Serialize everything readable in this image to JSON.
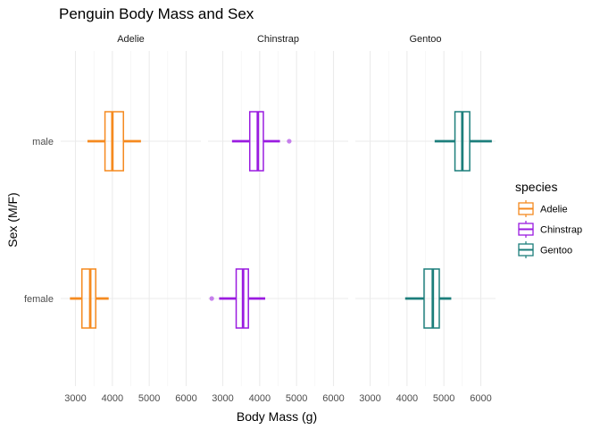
{
  "chart_data": {
    "type": "boxplot",
    "title": "Penguin Body Mass and Sex",
    "xlabel": "Body Mass (g)",
    "ylabel": "Sex (M/F)",
    "xlim": [
      2600,
      6400
    ],
    "x_ticks": [
      3000,
      4000,
      5000,
      6000
    ],
    "x_tick_labels": [
      "3000",
      "4000",
      "5000",
      "6000"
    ],
    "categories": [
      "female",
      "male"
    ],
    "facets": [
      "Adelie",
      "Chinstrap",
      "Gentoo"
    ],
    "legend": {
      "title": "species",
      "position": "right",
      "entries": [
        "Adelie",
        "Chinstrap",
        "Gentoo"
      ]
    },
    "colors": {
      "Adelie": "#F58A1F",
      "Chinstrap": "#9A1BE0",
      "Gentoo": "#1C7E7B"
    },
    "grid": true,
    "series": [
      {
        "name": "Adelie",
        "boxes": [
          {
            "sex": "male",
            "min": 3325,
            "q1": 3800,
            "median": 4000,
            "q3": 4300,
            "max": 4775,
            "outliers": []
          },
          {
            "sex": "female",
            "min": 2850,
            "q1": 3175,
            "median": 3400,
            "q3": 3550,
            "max": 3900,
            "outliers": []
          }
        ]
      },
      {
        "name": "Chinstrap",
        "boxes": [
          {
            "sex": "male",
            "min": 3250,
            "q1": 3731,
            "median": 3950,
            "q3": 4100,
            "max": 4550,
            "outliers": [
              4800
            ]
          },
          {
            "sex": "female",
            "min": 2900,
            "q1": 3363,
            "median": 3550,
            "q3": 3694,
            "max": 4150,
            "outliers": [
              2700
            ]
          }
        ]
      },
      {
        "name": "Gentoo",
        "boxes": [
          {
            "sex": "male",
            "min": 4750,
            "q1": 5300,
            "median": 5500,
            "q3": 5700,
            "max": 6300,
            "outliers": []
          },
          {
            "sex": "female",
            "min": 3950,
            "q1": 4463,
            "median": 4700,
            "q3": 4875,
            "max": 5200,
            "outliers": []
          }
        ]
      }
    ]
  }
}
